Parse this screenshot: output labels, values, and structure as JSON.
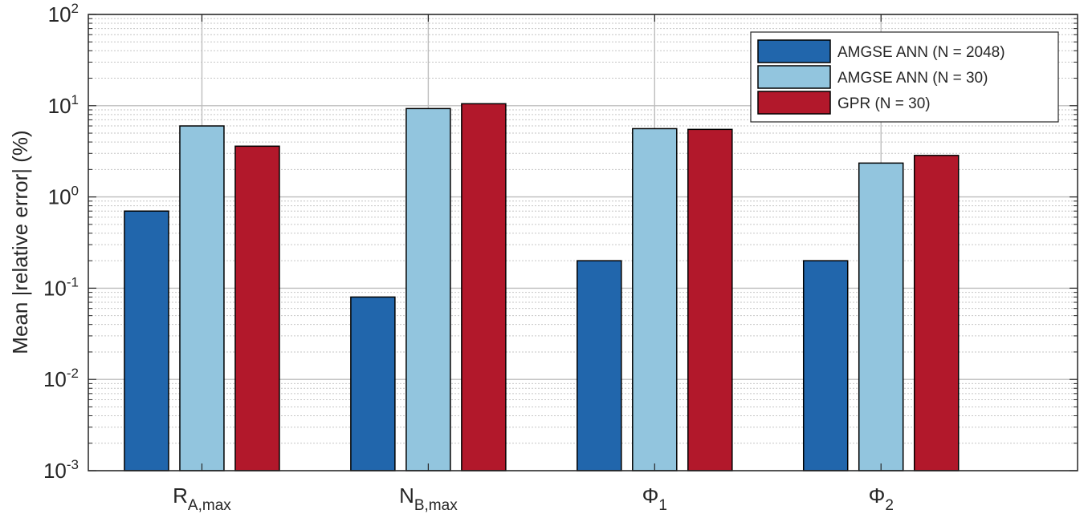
{
  "chart_data": {
    "type": "bar",
    "ylabel": "Mean |relative error| (%)",
    "yscale": "log",
    "ylim": [
      0.001,
      100
    ],
    "grid": true,
    "minor_grid": true,
    "legend_position": "top-right",
    "yticks": [
      {
        "base": "10",
        "exp": "-3",
        "value": 0.001
      },
      {
        "base": "10",
        "exp": "-2",
        "value": 0.01
      },
      {
        "base": "10",
        "exp": "-1",
        "value": 0.1
      },
      {
        "base": "10",
        "exp": "0",
        "value": 1
      },
      {
        "base": "10",
        "exp": "1",
        "value": 10
      },
      {
        "base": "10",
        "exp": "2",
        "value": 100
      }
    ],
    "categories": [
      {
        "main": "R",
        "sub": "A,max"
      },
      {
        "main": "N",
        "sub": "B,max"
      },
      {
        "main": "Φ",
        "sub": "1"
      },
      {
        "main": "Φ",
        "sub": "2"
      }
    ],
    "series": [
      {
        "name": "AMGSE ANN (N = 2048)",
        "color": "#2166ac",
        "values": [
          0.7,
          0.08,
          0.2,
          0.2
        ]
      },
      {
        "name": "AMGSE ANN (N = 30)",
        "color": "#92c5de",
        "values": [
          6.0,
          9.3,
          5.6,
          2.35
        ]
      },
      {
        "name": "GPR (N = 30)",
        "color": "#b2182b",
        "values": [
          3.6,
          10.5,
          5.5,
          2.85
        ]
      }
    ]
  }
}
